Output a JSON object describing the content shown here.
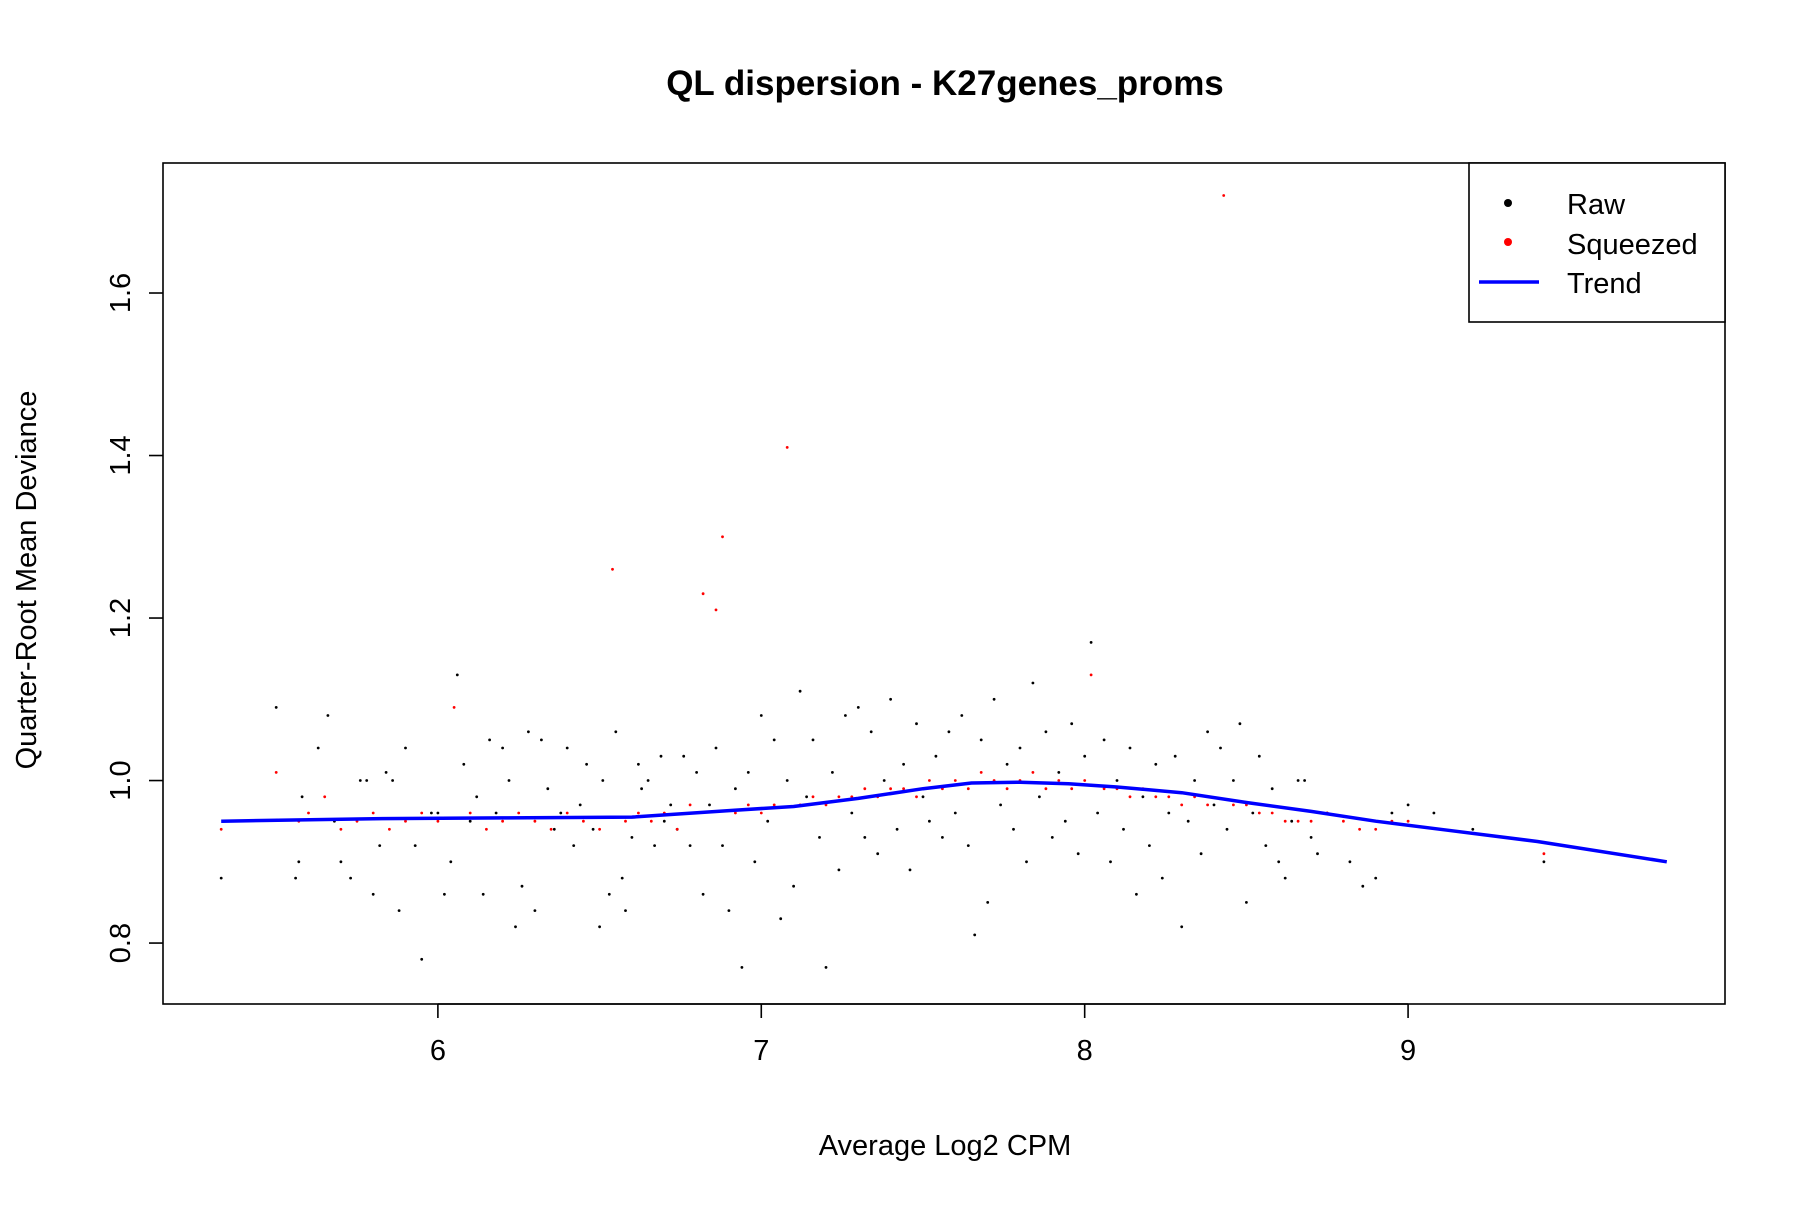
{
  "chart_data": {
    "type": "scatter",
    "title": "QL dispersion - K27genes_proms",
    "xlabel": "Average Log2 CPM",
    "ylabel": "Quarter-Root Mean Deviance",
    "xlim": [
      5.15,
      9.98
    ],
    "ylim": [
      0.725,
      1.76
    ],
    "x_ticks": [
      6,
      7,
      8,
      9
    ],
    "y_ticks": [
      0.8,
      1.0,
      1.2,
      1.4,
      1.6
    ],
    "x_tick_labels": [
      "6",
      "7",
      "8",
      "9"
    ],
    "y_tick_labels": [
      "0.8",
      "1.0",
      "1.2",
      "1.4",
      "1.6"
    ],
    "legend": {
      "placement": "top-right",
      "entries": [
        {
          "label": "Raw",
          "color": "#000000",
          "kind": "point"
        },
        {
          "label": "Squeezed",
          "color": "#ff0000",
          "kind": "point"
        },
        {
          "label": "Trend",
          "color": "#0000ff",
          "kind": "line"
        }
      ]
    },
    "grid": false,
    "series": [
      {
        "name": "Raw",
        "color": "#000000",
        "points": [
          [
            5.33,
            0.88
          ],
          [
            5.5,
            1.09
          ],
          [
            5.56,
            0.88
          ],
          [
            5.57,
            0.9
          ],
          [
            5.58,
            0.98
          ],
          [
            5.63,
            1.04
          ],
          [
            5.66,
            1.08
          ],
          [
            5.68,
            0.95
          ],
          [
            5.7,
            0.9
          ],
          [
            5.73,
            0.88
          ],
          [
            5.76,
            1.0
          ],
          [
            5.78,
            1.0
          ],
          [
            5.8,
            0.86
          ],
          [
            5.82,
            0.92
          ],
          [
            5.84,
            1.01
          ],
          [
            5.86,
            1.0
          ],
          [
            5.88,
            0.84
          ],
          [
            5.9,
            1.04
          ],
          [
            5.93,
            0.92
          ],
          [
            5.95,
            0.78
          ],
          [
            5.98,
            0.96
          ],
          [
            6.0,
            0.96
          ],
          [
            6.02,
            0.86
          ],
          [
            6.04,
            0.9
          ],
          [
            6.06,
            1.13
          ],
          [
            6.08,
            1.02
          ],
          [
            6.1,
            0.95
          ],
          [
            6.12,
            0.98
          ],
          [
            6.14,
            0.86
          ],
          [
            6.16,
            1.05
          ],
          [
            6.18,
            0.96
          ],
          [
            6.2,
            1.04
          ],
          [
            6.22,
            1.0
          ],
          [
            6.24,
            0.82
          ],
          [
            6.26,
            0.87
          ],
          [
            6.28,
            1.06
          ],
          [
            6.3,
            0.84
          ],
          [
            6.32,
            1.05
          ],
          [
            6.34,
            0.99
          ],
          [
            6.36,
            0.94
          ],
          [
            6.38,
            0.96
          ],
          [
            6.4,
            1.04
          ],
          [
            6.42,
            0.92
          ],
          [
            6.44,
            0.97
          ],
          [
            6.46,
            1.02
          ],
          [
            6.48,
            0.94
          ],
          [
            6.5,
            0.82
          ],
          [
            6.51,
            1.0
          ],
          [
            6.53,
            0.86
          ],
          [
            6.55,
            1.06
          ],
          [
            6.57,
            0.88
          ],
          [
            6.58,
            0.84
          ],
          [
            6.6,
            0.93
          ],
          [
            6.62,
            1.02
          ],
          [
            6.63,
            0.99
          ],
          [
            6.65,
            1.0
          ],
          [
            6.67,
            0.92
          ],
          [
            6.69,
            1.03
          ],
          [
            6.7,
            0.95
          ],
          [
            6.72,
            0.97
          ],
          [
            6.74,
            0.94
          ],
          [
            6.76,
            1.03
          ],
          [
            6.78,
            0.92
          ],
          [
            6.8,
            1.01
          ],
          [
            6.82,
            0.86
          ],
          [
            6.84,
            0.97
          ],
          [
            6.86,
            1.04
          ],
          [
            6.88,
            0.92
          ],
          [
            6.9,
            0.84
          ],
          [
            6.92,
            0.99
          ],
          [
            6.94,
            0.77
          ],
          [
            6.96,
            1.01
          ],
          [
            6.98,
            0.9
          ],
          [
            7.0,
            1.08
          ],
          [
            7.02,
            0.95
          ],
          [
            7.04,
            1.05
          ],
          [
            7.06,
            0.83
          ],
          [
            7.08,
            1.0
          ],
          [
            7.1,
            0.87
          ],
          [
            7.12,
            1.11
          ],
          [
            7.14,
            0.98
          ],
          [
            7.16,
            1.05
          ],
          [
            7.18,
            0.93
          ],
          [
            7.2,
            0.77
          ],
          [
            7.22,
            1.01
          ],
          [
            7.24,
            0.89
          ],
          [
            7.26,
            1.08
          ],
          [
            7.28,
            0.96
          ],
          [
            7.3,
            1.09
          ],
          [
            7.32,
            0.93
          ],
          [
            7.34,
            1.06
          ],
          [
            7.36,
            0.91
          ],
          [
            7.38,
            1.0
          ],
          [
            7.4,
            1.1
          ],
          [
            7.42,
            0.94
          ],
          [
            7.44,
            1.02
          ],
          [
            7.46,
            0.89
          ],
          [
            7.48,
            1.07
          ],
          [
            7.5,
            0.98
          ],
          [
            7.52,
            0.95
          ],
          [
            7.54,
            1.03
          ],
          [
            7.56,
            0.93
          ],
          [
            7.58,
            1.06
          ],
          [
            7.6,
            0.96
          ],
          [
            7.62,
            1.08
          ],
          [
            7.64,
            0.92
          ],
          [
            7.66,
            0.81
          ],
          [
            7.68,
            1.05
          ],
          [
            7.7,
            0.85
          ],
          [
            7.72,
            1.1
          ],
          [
            7.74,
            0.97
          ],
          [
            7.76,
            1.02
          ],
          [
            7.78,
            0.94
          ],
          [
            7.8,
            1.04
          ],
          [
            7.82,
            0.9
          ],
          [
            7.84,
            1.12
          ],
          [
            7.86,
            0.98
          ],
          [
            7.88,
            1.06
          ],
          [
            7.9,
            0.93
          ],
          [
            7.92,
            1.01
          ],
          [
            7.94,
            0.95
          ],
          [
            7.96,
            1.07
          ],
          [
            7.98,
            0.91
          ],
          [
            8.0,
            1.03
          ],
          [
            8.02,
            1.17
          ],
          [
            8.04,
            0.96
          ],
          [
            8.06,
            1.05
          ],
          [
            8.08,
            0.9
          ],
          [
            8.1,
            1.0
          ],
          [
            8.12,
            0.94
          ],
          [
            8.14,
            1.04
          ],
          [
            8.16,
            0.86
          ],
          [
            8.18,
            0.98
          ],
          [
            8.2,
            0.92
          ],
          [
            8.22,
            1.02
          ],
          [
            8.24,
            0.88
          ],
          [
            8.26,
            0.96
          ],
          [
            8.28,
            1.03
          ],
          [
            8.3,
            0.82
          ],
          [
            8.32,
            0.95
          ],
          [
            8.34,
            1.0
          ],
          [
            8.36,
            0.91
          ],
          [
            8.38,
            1.06
          ],
          [
            8.4,
            0.97
          ],
          [
            8.42,
            1.04
          ],
          [
            8.44,
            0.94
          ],
          [
            8.46,
            1.0
          ],
          [
            8.48,
            1.07
          ],
          [
            8.5,
            0.85
          ],
          [
            8.52,
            0.96
          ],
          [
            8.54,
            1.03
          ],
          [
            8.56,
            0.92
          ],
          [
            8.58,
            0.99
          ],
          [
            8.6,
            0.9
          ],
          [
            8.62,
            0.88
          ],
          [
            8.64,
            0.95
          ],
          [
            8.66,
            1.0
          ],
          [
            8.68,
            1.0
          ],
          [
            8.7,
            0.93
          ],
          [
            8.72,
            0.91
          ],
          [
            8.75,
            0.96
          ],
          [
            8.82,
            0.9
          ],
          [
            8.86,
            0.87
          ],
          [
            8.9,
            0.88
          ],
          [
            8.95,
            0.96
          ],
          [
            9.0,
            0.97
          ],
          [
            9.08,
            0.96
          ],
          [
            9.2,
            0.94
          ],
          [
            9.42,
            0.9
          ]
        ]
      },
      {
        "name": "Squeezed",
        "color": "#ff0000",
        "points": [
          [
            5.33,
            0.94
          ],
          [
            5.5,
            1.01
          ],
          [
            5.57,
            0.95
          ],
          [
            5.6,
            0.96
          ],
          [
            5.65,
            0.98
          ],
          [
            5.7,
            0.94
          ],
          [
            5.75,
            0.95
          ],
          [
            5.8,
            0.96
          ],
          [
            5.85,
            0.94
          ],
          [
            5.9,
            0.95
          ],
          [
            5.95,
            0.96
          ],
          [
            6.0,
            0.95
          ],
          [
            6.05,
            1.09
          ],
          [
            6.1,
            0.96
          ],
          [
            6.15,
            0.94
          ],
          [
            6.2,
            0.95
          ],
          [
            6.25,
            0.96
          ],
          [
            6.3,
            0.95
          ],
          [
            6.35,
            0.94
          ],
          [
            6.4,
            0.96
          ],
          [
            6.45,
            0.95
          ],
          [
            6.5,
            0.94
          ],
          [
            6.54,
            1.26
          ],
          [
            6.58,
            0.95
          ],
          [
            6.62,
            0.96
          ],
          [
            6.66,
            0.95
          ],
          [
            6.7,
            0.96
          ],
          [
            6.74,
            0.94
          ],
          [
            6.78,
            0.97
          ],
          [
            6.82,
            1.23
          ],
          [
            6.86,
            1.21
          ],
          [
            6.88,
            1.3
          ],
          [
            6.92,
            0.96
          ],
          [
            6.96,
            0.97
          ],
          [
            7.0,
            0.96
          ],
          [
            7.04,
            0.97
          ],
          [
            7.08,
            1.41
          ],
          [
            7.12,
            0.97
          ],
          [
            7.16,
            0.98
          ],
          [
            7.2,
            0.97
          ],
          [
            7.24,
            0.98
          ],
          [
            7.28,
            0.98
          ],
          [
            7.32,
            0.99
          ],
          [
            7.36,
            0.98
          ],
          [
            7.4,
            0.99
          ],
          [
            7.44,
            0.99
          ],
          [
            7.48,
            0.98
          ],
          [
            7.52,
            1.0
          ],
          [
            7.56,
            0.99
          ],
          [
            7.6,
            1.0
          ],
          [
            7.64,
            0.99
          ],
          [
            7.68,
            1.01
          ],
          [
            7.72,
            1.0
          ],
          [
            7.76,
            0.99
          ],
          [
            7.8,
            1.0
          ],
          [
            7.84,
            1.01
          ],
          [
            7.88,
            0.99
          ],
          [
            7.92,
            1.0
          ],
          [
            7.96,
            0.99
          ],
          [
            8.0,
            1.0
          ],
          [
            8.02,
            1.13
          ],
          [
            8.06,
            0.99
          ],
          [
            8.1,
            0.99
          ],
          [
            8.14,
            0.98
          ],
          [
            8.18,
            0.99
          ],
          [
            8.22,
            0.98
          ],
          [
            8.26,
            0.98
          ],
          [
            8.3,
            0.97
          ],
          [
            8.34,
            0.98
          ],
          [
            8.38,
            0.97
          ],
          [
            8.43,
            1.72
          ],
          [
            8.46,
            0.97
          ],
          [
            8.5,
            0.97
          ],
          [
            8.54,
            0.96
          ],
          [
            8.58,
            0.96
          ],
          [
            8.62,
            0.95
          ],
          [
            8.66,
            0.95
          ],
          [
            8.7,
            0.95
          ],
          [
            8.75,
            0.96
          ],
          [
            8.8,
            0.95
          ],
          [
            8.85,
            0.94
          ],
          [
            8.9,
            0.94
          ],
          [
            8.95,
            0.95
          ],
          [
            9.0,
            0.95
          ],
          [
            9.1,
            0.94
          ],
          [
            9.42,
            0.91
          ]
        ]
      },
      {
        "name": "Trend",
        "color": "#0000ff",
        "points": [
          [
            5.33,
            0.95
          ],
          [
            5.8,
            0.953
          ],
          [
            6.2,
            0.954
          ],
          [
            6.6,
            0.955
          ],
          [
            6.9,
            0.963
          ],
          [
            7.1,
            0.968
          ],
          [
            7.3,
            0.978
          ],
          [
            7.5,
            0.99
          ],
          [
            7.65,
            0.997
          ],
          [
            7.8,
            0.998
          ],
          [
            7.95,
            0.996
          ],
          [
            8.1,
            0.992
          ],
          [
            8.3,
            0.985
          ],
          [
            8.5,
            0.973
          ],
          [
            8.7,
            0.962
          ],
          [
            8.9,
            0.95
          ],
          [
            9.1,
            0.94
          ],
          [
            9.4,
            0.925
          ],
          [
            9.8,
            0.9
          ]
        ]
      }
    ]
  }
}
